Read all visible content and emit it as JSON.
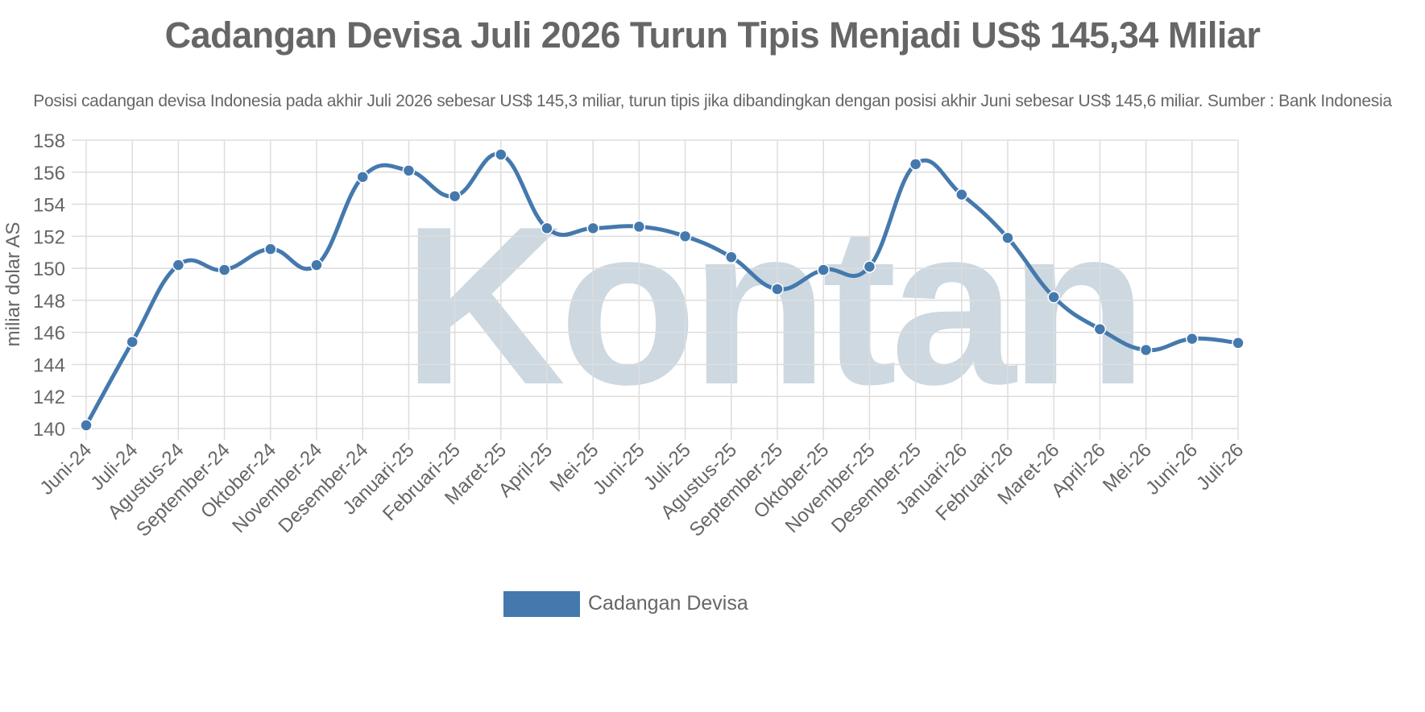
{
  "chart_data": {
    "type": "line",
    "title": "Cadangan Devisa Juli 2026 Turun Tipis Menjadi US$ 145,34 Miliar",
    "subtitle": "Posisi cadangan devisa Indonesia pada akhir Juli 2026 sebesar US$ 145,3 miliar, turun tipis jika dibandingkan dengan posisi akhir Juni sebesar US$ 145,6 miliar. Sumber : Bank Indonesia",
    "ylabel": "miliar dolar AS",
    "xlabel": "",
    "ylim": [
      140,
      158
    ],
    "yticks": [
      140,
      142,
      144,
      146,
      148,
      150,
      152,
      154,
      156,
      158
    ],
    "grid": true,
    "legend_position": "bottom",
    "categories": [
      "Juni-24",
      "Juli-24",
      "Agustus-24",
      "September-24",
      "Oktober-24",
      "November-24",
      "Desember-24",
      "Januari-25",
      "Februari-25",
      "Maret-25",
      "April-25",
      "Mei-25",
      "Juni-25",
      "Juli-25",
      "Agustus-25",
      "September-25",
      "Oktober-25",
      "November-25",
      "Desember-25",
      "Januari-26",
      "Februari-26",
      "Maret-26",
      "April-26",
      "Mei-26",
      "Juni-26",
      "Juli-26"
    ],
    "series": [
      {
        "name": "Cadangan Devisa",
        "color": "#4579ad",
        "values": [
          140.2,
          145.4,
          150.2,
          149.9,
          151.2,
          150.2,
          155.7,
          156.1,
          154.5,
          157.1,
          152.5,
          152.5,
          152.6,
          152.0,
          150.7,
          148.7,
          149.9,
          150.1,
          156.5,
          154.6,
          151.9,
          148.2,
          146.2,
          144.9,
          145.6,
          145.34
        ]
      }
    ]
  },
  "watermark": "Kontan"
}
